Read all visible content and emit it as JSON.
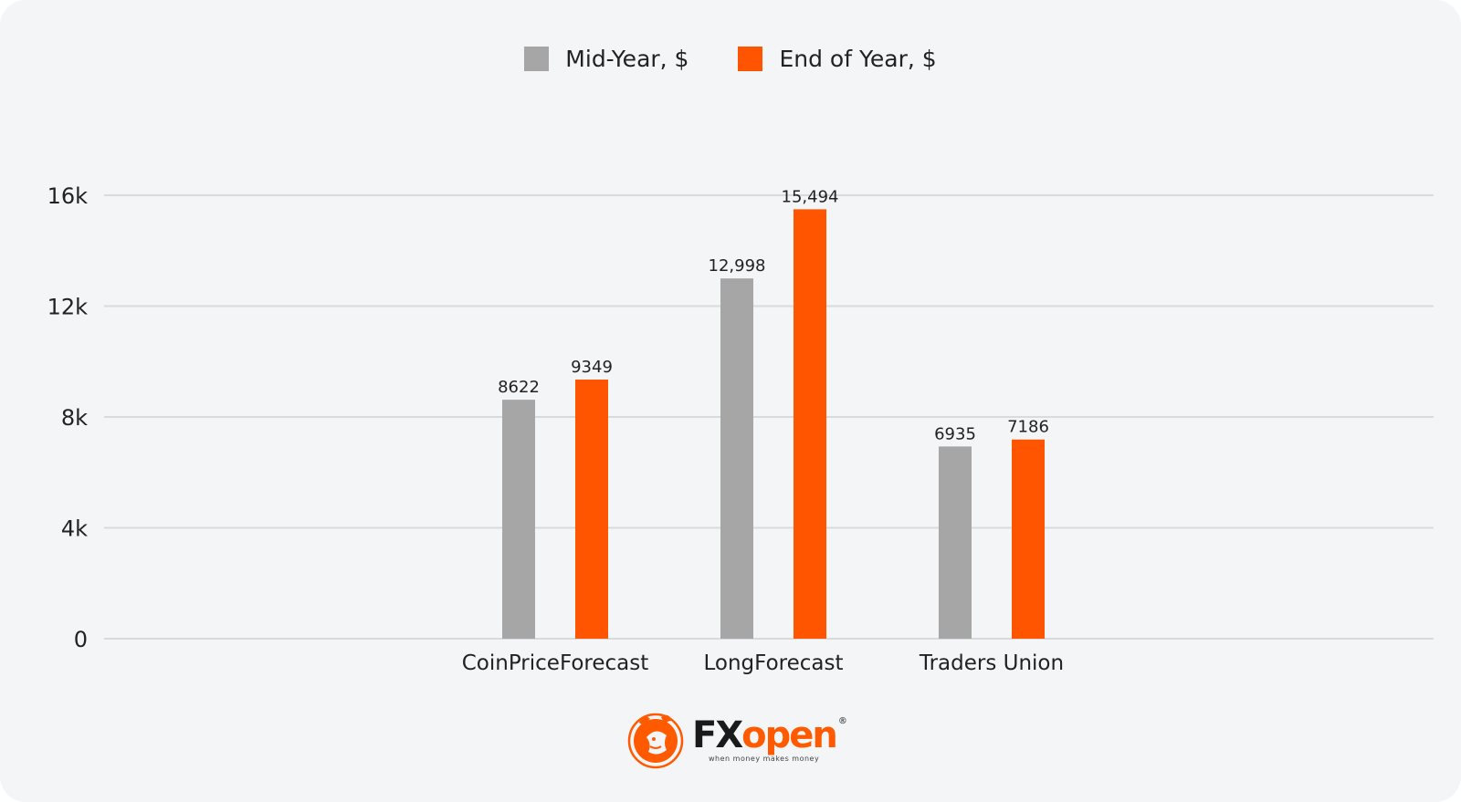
{
  "chart_data": {
    "type": "bar",
    "categories": [
      "CoinPriceForecast",
      "LongForecast",
      "Traders Union"
    ],
    "series": [
      {
        "name": "Mid-Year, $",
        "color": "#a6a6a6",
        "values": [
          8622,
          12998,
          6935
        ],
        "labels": [
          "8622",
          "12,998",
          "6935"
        ]
      },
      {
        "name": "End of Year, $",
        "color": "#ff5500",
        "values": [
          9349,
          15494,
          7186
        ],
        "labels": [
          "9349",
          "15,494",
          "7186"
        ]
      }
    ],
    "yticks": [
      0,
      4000,
      8000,
      12000,
      16000
    ],
    "ytick_labels": [
      "0",
      "4k",
      "8k",
      "12k",
      "16k"
    ],
    "ylim": [
      0,
      16000
    ],
    "grid": true,
    "legend_position": "top-center"
  },
  "branding": {
    "name_fx": "FX",
    "name_open": "open",
    "registered": "®",
    "tagline": "when money makes money",
    "logo_icon": "bull-emblem-icon"
  }
}
